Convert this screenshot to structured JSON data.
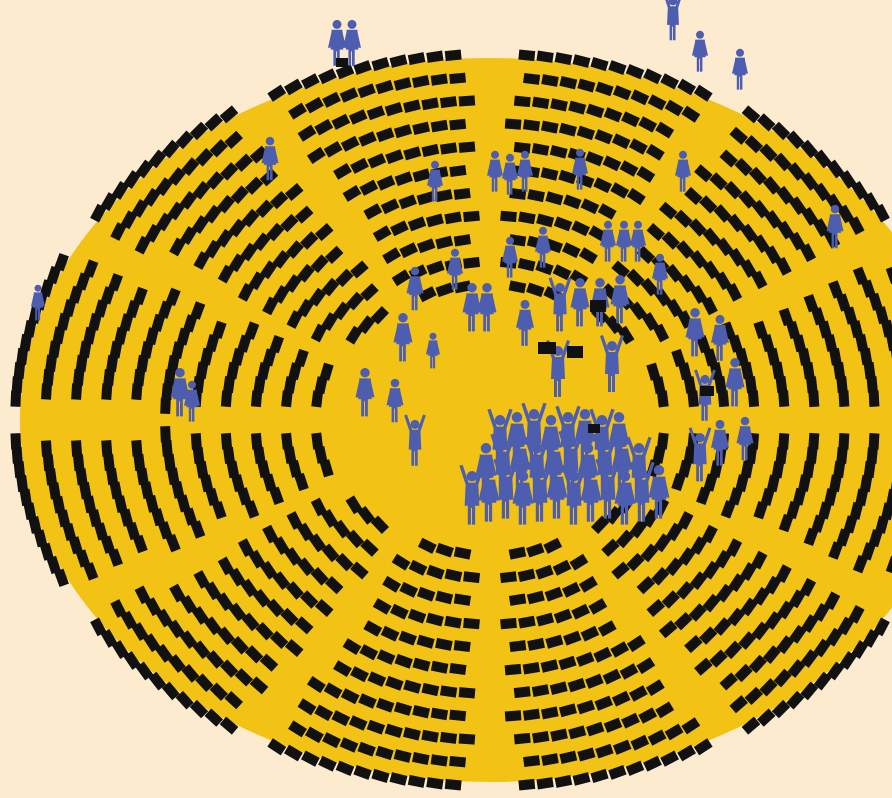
{
  "illustration": {
    "subject": "parliament-hemicycle",
    "colors": {
      "background": "#fdebd0",
      "floor": "#f2c315",
      "seats": "#111111",
      "figures": "#4d5db0"
    },
    "seat_rings": 11,
    "aisles": 12,
    "icons": [
      "seat-icon",
      "person-figure-icon",
      "protest-sign-icon",
      "crowd-group-icon"
    ]
  }
}
